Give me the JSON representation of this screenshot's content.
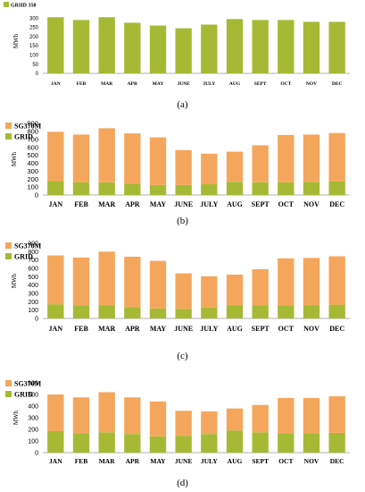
{
  "colors": {
    "grid": "#a6b934",
    "sg370m": "#f4a75c",
    "axis": "#b0b0b0"
  },
  "captions": {
    "a": "(a)",
    "b": "(b)",
    "c": "(c)",
    "d": "(d)"
  },
  "chart_data": [
    {
      "id": "a",
      "type": "bar",
      "categories": [
        "JAN",
        "FEB",
        "MAR",
        "APR",
        "MAY",
        "JUNE",
        "JULY",
        "AUG",
        "SEPT",
        "OCT",
        "NOV",
        "DEC"
      ],
      "series": [
        {
          "name": "GRID",
          "values": [
            305,
            290,
            305,
            275,
            260,
            245,
            265,
            295,
            290,
            290,
            280,
            280
          ]
        }
      ],
      "legend_text": "GRIID 350",
      "ylabel": "MWh",
      "ylim": [
        0,
        350
      ],
      "yticks": [
        0,
        50,
        100,
        150,
        200,
        250,
        300
      ],
      "stacked": false,
      "grid": false,
      "legend": "top-left"
    },
    {
      "id": "b",
      "type": "bar",
      "stacked": true,
      "categories": [
        "JAN",
        "FEB",
        "MAR",
        "APR",
        "MAY",
        "JUNE",
        "JULY",
        "AUG",
        "SEPT",
        "OCT",
        "NOV",
        "DEC"
      ],
      "series": [
        {
          "name": "GRID",
          "values": [
            175,
            160,
            160,
            140,
            125,
            125,
            135,
            165,
            160,
            160,
            165,
            170
          ]
        },
        {
          "name": "SG370M",
          "values": [
            620,
            600,
            680,
            635,
            600,
            440,
            385,
            380,
            465,
            595,
            595,
            610
          ]
        }
      ],
      "ylabel": "MWh",
      "ylim": [
        0,
        900
      ],
      "yticks": [
        0,
        100,
        200,
        300,
        400,
        500,
        600,
        700,
        800,
        900
      ],
      "grid": false,
      "legend": "top-left"
    },
    {
      "id": "c",
      "type": "bar",
      "stacked": true,
      "categories": [
        "JAN",
        "FEB",
        "MAR",
        "APR",
        "MAY",
        "JUNE",
        "JULY",
        "AUG",
        "SEPT",
        "OCT",
        "NOV",
        "DEC"
      ],
      "series": [
        {
          "name": "GRID",
          "values": [
            170,
            155,
            160,
            135,
            120,
            115,
            130,
            160,
            155,
            155,
            160,
            165
          ]
        },
        {
          "name": "SG370M",
          "values": [
            585,
            575,
            640,
            605,
            570,
            425,
            375,
            365,
            435,
            565,
            565,
            580
          ]
        }
      ],
      "ylabel": "MWh",
      "ylim": [
        0,
        900
      ],
      "yticks": [
        0,
        100,
        200,
        300,
        400,
        500,
        600,
        700,
        800,
        900
      ],
      "grid": false,
      "legend": "top-left"
    },
    {
      "id": "d",
      "type": "bar",
      "stacked": true,
      "categories": [
        "JAN",
        "FEB",
        "MAR",
        "APR",
        "MAY",
        "JUNE",
        "JULY",
        "AUG",
        "SEPT",
        "OCT",
        "NOV",
        "DEC"
      ],
      "series": [
        {
          "name": "GRID",
          "values": [
            185,
            165,
            175,
            160,
            140,
            145,
            160,
            190,
            175,
            165,
            165,
            170
          ]
        },
        {
          "name": "SG370M",
          "values": [
            315,
            310,
            345,
            315,
            300,
            215,
            195,
            190,
            235,
            305,
            305,
            315
          ]
        }
      ],
      "ylabel": "MWh",
      "ylim": [
        0,
        600
      ],
      "yticks": [
        0,
        100,
        200,
        300,
        400,
        500,
        600
      ],
      "grid": false,
      "legend": "top-left"
    }
  ]
}
